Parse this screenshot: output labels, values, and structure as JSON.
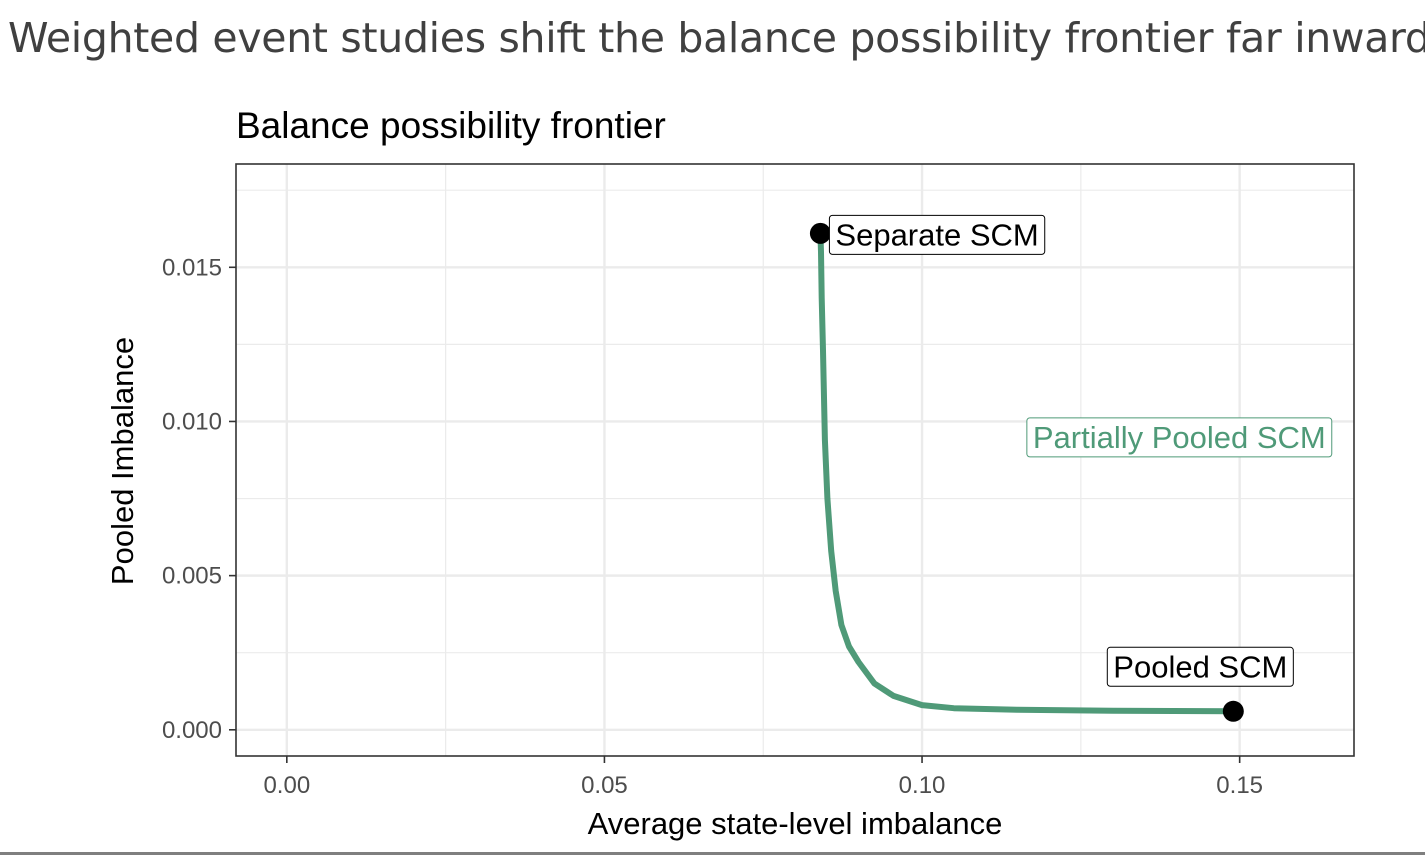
{
  "slide": {
    "title": "Weighted event studies shift the balance possibility frontier far inward"
  },
  "chart_data": {
    "type": "line",
    "title": "Balance possibility frontier",
    "xlabel": "Average state-level imbalance",
    "ylabel": "Pooled Imbalance",
    "xlim": [
      -0.008,
      0.168
    ],
    "ylim": [
      -0.00085,
      0.01835
    ],
    "xticks": [
      0.0,
      0.05,
      0.1,
      0.15
    ],
    "xtick_labels": [
      "0.00",
      "0.05",
      "0.10",
      "0.15"
    ],
    "yticks": [
      0.0,
      0.005,
      0.01,
      0.015
    ],
    "ytick_labels": [
      "0.000",
      "0.005",
      "0.010",
      "0.015"
    ],
    "grid": true,
    "legend": "none",
    "colors": {
      "frontier": "#4f9a78",
      "points": "#000000",
      "grid": "#ebebeb",
      "panel_border": "#333333"
    },
    "series": [
      {
        "x": [
          0.084,
          0.0841,
          0.0842,
          0.0844,
          0.0847,
          0.0851,
          0.0857,
          0.0864,
          0.0873,
          0.0885,
          0.09,
          0.0925,
          0.0955,
          0.1,
          0.105,
          0.115,
          0.13,
          0.149
        ],
        "y": [
          0.0161,
          0.0155,
          0.014,
          0.0123,
          0.0094,
          0.0075,
          0.0058,
          0.0045,
          0.0034,
          0.0027,
          0.0022,
          0.0015,
          0.0011,
          0.0008,
          0.0007,
          0.00065,
          0.00062,
          0.0006
        ]
      }
    ],
    "points": [
      {
        "label": "Separate SCM",
        "x": 0.084,
        "y": 0.0161
      },
      {
        "label": "Pooled SCM",
        "x": 0.149,
        "y": 0.0006
      }
    ],
    "annotations": [
      {
        "label": "Partially Pooled SCM",
        "x": 0.1405,
        "y": 0.0095
      }
    ]
  }
}
